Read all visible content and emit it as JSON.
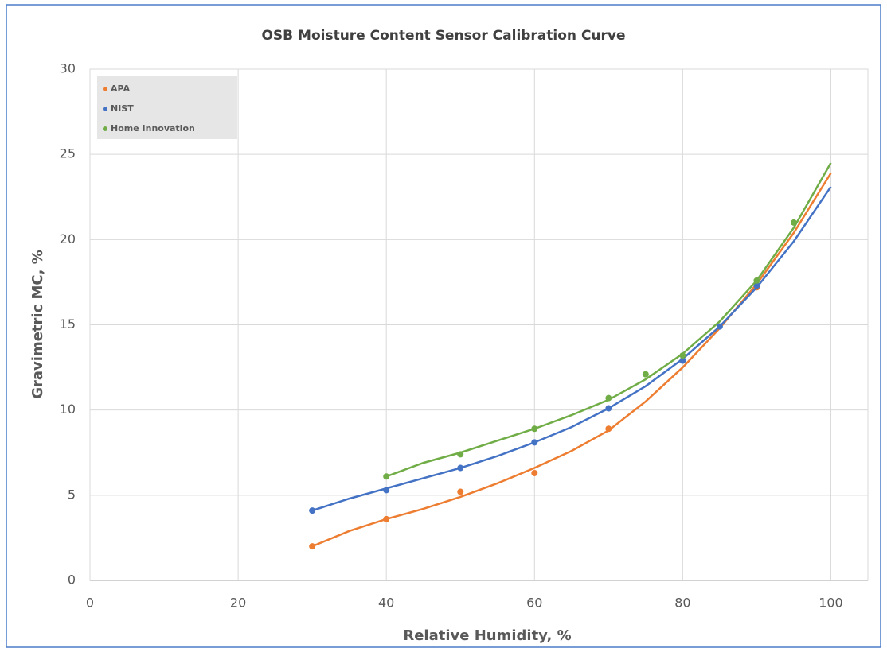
{
  "chart_data": {
    "type": "scatter",
    "title": "OSB Moisture  Content Sensor Calibration Curve",
    "xlabel": "Relative Humidity,  %",
    "ylabel": "Gravimetric MC, %",
    "xlim": [
      0,
      105
    ],
    "xticks": [
      0,
      20,
      40,
      60,
      80,
      100
    ],
    "ylim": [
      0,
      30
    ],
    "yticks": [
      0,
      5,
      10,
      15,
      20,
      25,
      30
    ],
    "grid": true,
    "legend": "upper left",
    "series": [
      {
        "name": "APA",
        "color": "#ed7d31",
        "x": [
          30,
          40,
          50,
          60,
          70,
          80,
          90
        ],
        "values": [
          2.0,
          3.6,
          5.2,
          6.3,
          8.9,
          12.9,
          17.2
        ],
        "trendline": {
          "x": [
            30,
            35,
            40,
            45,
            50,
            55,
            60,
            65,
            70,
            75,
            80,
            85,
            90,
            95,
            100
          ],
          "values": [
            2.0,
            2.9,
            3.6,
            4.2,
            4.9,
            5.7,
            6.6,
            7.6,
            8.8,
            10.5,
            12.5,
            14.8,
            17.4,
            20.4,
            23.9
          ]
        }
      },
      {
        "name": "NIST",
        "color": "#4472c4",
        "x": [
          30,
          40,
          50,
          60,
          70,
          80,
          85,
          90
        ],
        "values": [
          4.1,
          5.3,
          6.6,
          8.1,
          10.1,
          12.9,
          14.9,
          17.3
        ],
        "trendline": {
          "x": [
            30,
            35,
            40,
            45,
            50,
            55,
            60,
            65,
            70,
            75,
            80,
            85,
            90,
            95,
            100
          ],
          "values": [
            4.1,
            4.8,
            5.4,
            6.0,
            6.6,
            7.3,
            8.1,
            9.0,
            10.1,
            11.4,
            13.0,
            14.9,
            17.2,
            19.9,
            23.1
          ]
        }
      },
      {
        "name": "Home Innovation",
        "color": "#70ad47",
        "x": [
          40,
          50,
          60,
          70,
          75,
          80,
          90,
          95
        ],
        "values": [
          6.1,
          7.4,
          8.9,
          10.7,
          12.1,
          13.2,
          17.6,
          21.0
        ],
        "trendline": {
          "x": [
            40,
            45,
            50,
            55,
            60,
            65,
            70,
            75,
            80,
            85,
            90,
            95,
            100
          ],
          "values": [
            6.1,
            6.9,
            7.5,
            8.2,
            8.9,
            9.7,
            10.6,
            11.8,
            13.3,
            15.2,
            17.6,
            20.7,
            24.5
          ]
        }
      }
    ]
  }
}
